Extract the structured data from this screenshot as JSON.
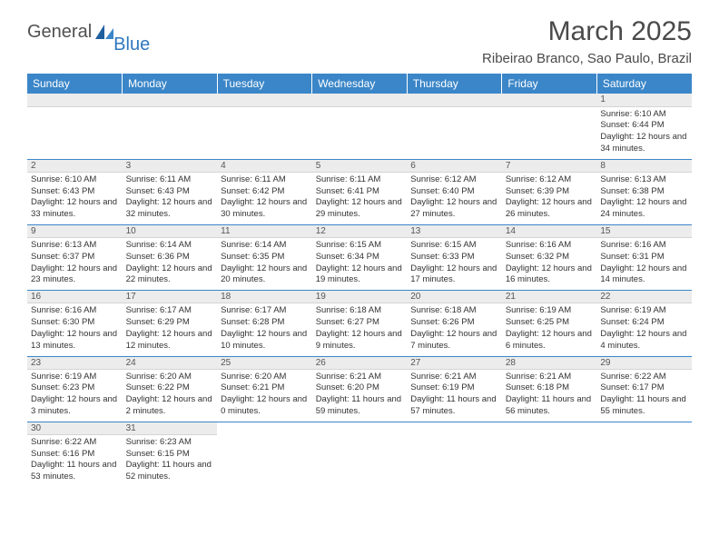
{
  "logo": {
    "part1": "General",
    "part2": "Blue"
  },
  "title": "March 2025",
  "location": "Ribeirao Branco, Sao Paulo, Brazil",
  "colors": {
    "header_bg": "#3b86c8",
    "header_text": "#ffffff",
    "daynum_bg": "#ececec",
    "week_divider": "#3b86c8",
    "logo_blue": "#2f78bf",
    "text": "#333333"
  },
  "typography": {
    "title_fontsize": 30,
    "location_fontsize": 15,
    "dayheader_fontsize": 12,
    "daynum_fontsize": 10,
    "daydata_fontsize": 9.5
  },
  "day_headers": [
    "Sunday",
    "Monday",
    "Tuesday",
    "Wednesday",
    "Thursday",
    "Friday",
    "Saturday"
  ],
  "weeks": [
    [
      null,
      null,
      null,
      null,
      null,
      null,
      {
        "n": "1",
        "sr": "6:10 AM",
        "ss": "6:44 PM",
        "dl": "12 hours and 34 minutes."
      }
    ],
    [
      {
        "n": "2",
        "sr": "6:10 AM",
        "ss": "6:43 PM",
        "dl": "12 hours and 33 minutes."
      },
      {
        "n": "3",
        "sr": "6:11 AM",
        "ss": "6:43 PM",
        "dl": "12 hours and 32 minutes."
      },
      {
        "n": "4",
        "sr": "6:11 AM",
        "ss": "6:42 PM",
        "dl": "12 hours and 30 minutes."
      },
      {
        "n": "5",
        "sr": "6:11 AM",
        "ss": "6:41 PM",
        "dl": "12 hours and 29 minutes."
      },
      {
        "n": "6",
        "sr": "6:12 AM",
        "ss": "6:40 PM",
        "dl": "12 hours and 27 minutes."
      },
      {
        "n": "7",
        "sr": "6:12 AM",
        "ss": "6:39 PM",
        "dl": "12 hours and 26 minutes."
      },
      {
        "n": "8",
        "sr": "6:13 AM",
        "ss": "6:38 PM",
        "dl": "12 hours and 24 minutes."
      }
    ],
    [
      {
        "n": "9",
        "sr": "6:13 AM",
        "ss": "6:37 PM",
        "dl": "12 hours and 23 minutes."
      },
      {
        "n": "10",
        "sr": "6:14 AM",
        "ss": "6:36 PM",
        "dl": "12 hours and 22 minutes."
      },
      {
        "n": "11",
        "sr": "6:14 AM",
        "ss": "6:35 PM",
        "dl": "12 hours and 20 minutes."
      },
      {
        "n": "12",
        "sr": "6:15 AM",
        "ss": "6:34 PM",
        "dl": "12 hours and 19 minutes."
      },
      {
        "n": "13",
        "sr": "6:15 AM",
        "ss": "6:33 PM",
        "dl": "12 hours and 17 minutes."
      },
      {
        "n": "14",
        "sr": "6:16 AM",
        "ss": "6:32 PM",
        "dl": "12 hours and 16 minutes."
      },
      {
        "n": "15",
        "sr": "6:16 AM",
        "ss": "6:31 PM",
        "dl": "12 hours and 14 minutes."
      }
    ],
    [
      {
        "n": "16",
        "sr": "6:16 AM",
        "ss": "6:30 PM",
        "dl": "12 hours and 13 minutes."
      },
      {
        "n": "17",
        "sr": "6:17 AM",
        "ss": "6:29 PM",
        "dl": "12 hours and 12 minutes."
      },
      {
        "n": "18",
        "sr": "6:17 AM",
        "ss": "6:28 PM",
        "dl": "12 hours and 10 minutes."
      },
      {
        "n": "19",
        "sr": "6:18 AM",
        "ss": "6:27 PM",
        "dl": "12 hours and 9 minutes."
      },
      {
        "n": "20",
        "sr": "6:18 AM",
        "ss": "6:26 PM",
        "dl": "12 hours and 7 minutes."
      },
      {
        "n": "21",
        "sr": "6:19 AM",
        "ss": "6:25 PM",
        "dl": "12 hours and 6 minutes."
      },
      {
        "n": "22",
        "sr": "6:19 AM",
        "ss": "6:24 PM",
        "dl": "12 hours and 4 minutes."
      }
    ],
    [
      {
        "n": "23",
        "sr": "6:19 AM",
        "ss": "6:23 PM",
        "dl": "12 hours and 3 minutes."
      },
      {
        "n": "24",
        "sr": "6:20 AM",
        "ss": "6:22 PM",
        "dl": "12 hours and 2 minutes."
      },
      {
        "n": "25",
        "sr": "6:20 AM",
        "ss": "6:21 PM",
        "dl": "12 hours and 0 minutes."
      },
      {
        "n": "26",
        "sr": "6:21 AM",
        "ss": "6:20 PM",
        "dl": "11 hours and 59 minutes."
      },
      {
        "n": "27",
        "sr": "6:21 AM",
        "ss": "6:19 PM",
        "dl": "11 hours and 57 minutes."
      },
      {
        "n": "28",
        "sr": "6:21 AM",
        "ss": "6:18 PM",
        "dl": "11 hours and 56 minutes."
      },
      {
        "n": "29",
        "sr": "6:22 AM",
        "ss": "6:17 PM",
        "dl": "11 hours and 55 minutes."
      }
    ],
    [
      {
        "n": "30",
        "sr": "6:22 AM",
        "ss": "6:16 PM",
        "dl": "11 hours and 53 minutes."
      },
      {
        "n": "31",
        "sr": "6:23 AM",
        "ss": "6:15 PM",
        "dl": "11 hours and 52 minutes."
      },
      null,
      null,
      null,
      null,
      null
    ]
  ],
  "labels": {
    "sunrise": "Sunrise:",
    "sunset": "Sunset:",
    "daylight": "Daylight:"
  }
}
